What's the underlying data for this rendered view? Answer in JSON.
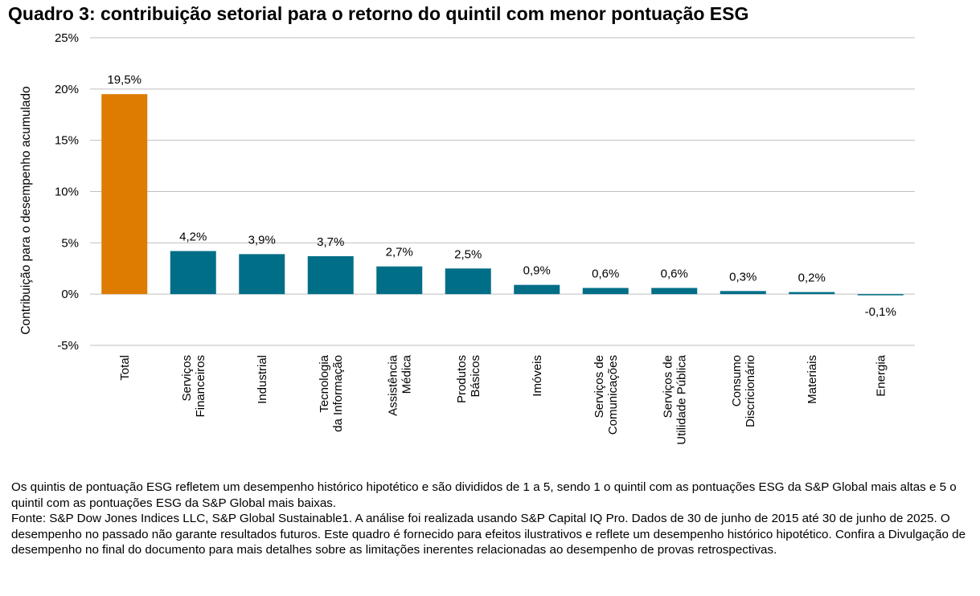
{
  "title": "Quadro 3: contribuição setorial para o retorno do quintil com menor pontuação ESG",
  "chart_data": {
    "type": "bar",
    "title": "Quadro 3: contribuição setorial para o retorno do quintil com menor pontuação ESG",
    "xlabel": "",
    "ylabel": "Contribuição para o desempenho acumulado",
    "ylim": [
      -5,
      25
    ],
    "yticks": [
      -5,
      0,
      5,
      10,
      15,
      20,
      25
    ],
    "ytick_labels": [
      "-5%",
      "0%",
      "5%",
      "10%",
      "15%",
      "20%",
      "25%"
    ],
    "grid": true,
    "categories": [
      [
        "Total"
      ],
      [
        "Serviços",
        "Financeiros"
      ],
      [
        "Industrial"
      ],
      [
        "Tecnologia",
        "da Informação"
      ],
      [
        "Assistência",
        "Médica"
      ],
      [
        "Produtos",
        "Básicos"
      ],
      [
        "Imóveis"
      ],
      [
        "Serviços de",
        "Comunicações"
      ],
      [
        "Serviços de",
        "Utilidade Pública"
      ],
      [
        "Consumo",
        "Discricionário"
      ],
      [
        "Materiais"
      ],
      [
        "Energia"
      ]
    ],
    "values": [
      19.5,
      4.2,
      3.9,
      3.7,
      2.7,
      2.5,
      0.9,
      0.6,
      0.6,
      0.3,
      0.2,
      -0.1
    ],
    "data_labels": [
      "19,5%",
      "4,2%",
      "3,9%",
      "3,7%",
      "2,7%",
      "2,5%",
      "0,9%",
      "0,6%",
      "0,6%",
      "0,3%",
      "0,2%",
      "-0,1%"
    ],
    "colors": {
      "total": "#DD7C00",
      "sector": "#006E87",
      "grid": "#BFBFBF"
    }
  },
  "notes": [
    "Os quintis de pontuação ESG refletem um desempenho histórico hipotético e são divididos de 1 a 5, sendo 1 o quintil com as pontuações ESG da S&P Global mais altas e 5 o quintil com as pontuações ESG da S&P Global mais baixas.",
    "Fonte: S&P Dow Jones Indices LLC, S&P Global Sustainable1. A análise foi realizada usando S&P Capital IQ Pro. Dados de 30 de junho de 2015 até 30 de junho de 2025. O desempenho no passado não garante resultados futuros. Este quadro é fornecido para efeitos ilustrativos e reflete um desempenho histórico hipotético. Confira a Divulgação de desempenho no final do documento para mais detalhes sobre as limitações inerentes relacionadas ao desempenho de provas retrospectivas."
  ]
}
